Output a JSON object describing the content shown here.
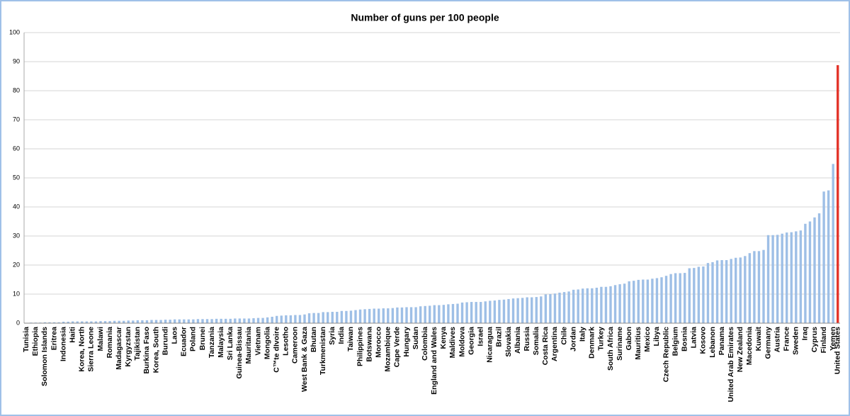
{
  "chart_data": {
    "type": "bar",
    "title": "Number of guns per 100 people",
    "categories": [
      "Tunisia",
      null,
      "Ethiopia",
      null,
      "Solomon Islands",
      null,
      "Eritrea",
      null,
      "Indonesia",
      null,
      "Haiti",
      null,
      "Korea, North",
      null,
      "Sierra Leone",
      null,
      "Malawi",
      null,
      "Romania",
      null,
      "Madagascar",
      null,
      "Kyrgyzstan",
      null,
      "Tajikistan",
      null,
      "Burkina Faso",
      null,
      "Korea, South",
      null,
      "Burundi",
      null,
      "Laos",
      null,
      "Ecuador",
      null,
      "Poland",
      null,
      "Brunei",
      null,
      "Tanzania",
      null,
      "Malaysia",
      null,
      "Sri Lanka",
      null,
      "Guinea-Bissau",
      null,
      "Mauritania",
      null,
      "Vietnam",
      null,
      "Mongolia",
      null,
      "C™te dIvoire",
      null,
      "Lesotho",
      null,
      "Cameroon",
      null,
      "West Bank & Gaza",
      null,
      "Bhutan",
      null,
      "Turkmenistan",
      null,
      "Syria",
      null,
      "India",
      null,
      "Taiwan",
      null,
      "Philippines",
      null,
      "Botswana",
      null,
      "Morocco",
      null,
      "Mozambique",
      null,
      "Cape Verde",
      null,
      "Hungary",
      null,
      "Sudan",
      null,
      "Colombia",
      null,
      "England and Wales",
      null,
      "Kenya",
      null,
      "Maldives",
      null,
      "Moldova",
      null,
      "Georgia",
      null,
      "Israel",
      null,
      "Nicaragua",
      null,
      "Brazil",
      null,
      "Slovakia",
      null,
      "Albania",
      null,
      "Russia",
      null,
      "Somalia",
      null,
      "Costa Rica",
      null,
      "Argentina",
      null,
      "Chile",
      null,
      "Jordan",
      null,
      "Italy",
      null,
      "Denmark",
      null,
      "Turkey",
      null,
      "South Africa",
      null,
      "Suriname",
      null,
      "Gabon",
      null,
      "Mauritius",
      null,
      "Mexico",
      null,
      "Libya",
      null,
      "Czech Republic",
      null,
      "Belgium",
      null,
      "Bosnia",
      null,
      "Latvia",
      null,
      "Kosovo",
      null,
      "Lebanon",
      null,
      "Panama",
      null,
      "United Arab Emirates",
      null,
      "New Zealand",
      null,
      "Macedonia",
      null,
      "Kuwait",
      null,
      "Germany",
      null,
      "Austria",
      null,
      "France",
      null,
      "Sweden",
      null,
      "Iraq",
      null,
      "Cyprus",
      null,
      "Finland",
      null,
      "Yemen",
      "United States"
    ],
    "values": [
      0.1,
      0.2,
      0.2,
      0.2,
      0.3,
      0.3,
      0.3,
      0.3,
      0.5,
      0.5,
      0.6,
      0.6,
      0.6,
      0.6,
      0.6,
      0.6,
      0.7,
      0.7,
      0.7,
      0.8,
      0.8,
      0.8,
      0.9,
      0.9,
      1,
      1,
      1,
      1.1,
      1.1,
      1.1,
      1.2,
      1.2,
      1.3,
      1.3,
      1.3,
      1.3,
      1.3,
      1.4,
      1.4,
      1.4,
      1.4,
      1.5,
      1.5,
      1.5,
      1.5,
      1.6,
      1.6,
      1.6,
      1.6,
      1.7,
      1.8,
      1.8,
      2,
      2.2,
      2.5,
      2.6,
      2.7,
      2.7,
      2.8,
      2.8,
      3,
      3.4,
      3.5,
      3.5,
      3.8,
      3.8,
      3.9,
      3.9,
      4.2,
      4.2,
      4.3,
      4.5,
      4.7,
      4.8,
      4.9,
      5,
      5,
      5.1,
      5.1,
      5.2,
      5.4,
      5.4,
      5.5,
      5.5,
      5.5,
      5.8,
      5.9,
      6,
      6.2,
      6.2,
      6.3,
      6.5,
      6.6,
      6.7,
      7.1,
      7.2,
      7.3,
      7.3,
      7.3,
      7.5,
      7.7,
      7.8,
      8,
      8.1,
      8.3,
      8.5,
      8.6,
      8.7,
      8.9,
      8.9,
      9,
      9.2,
      9.9,
      10,
      10.2,
      10.5,
      10.7,
      10.9,
      11.5,
      11.6,
      11.9,
      12,
      12,
      12.2,
      12.5,
      12.5,
      12.7,
      13.1,
      13.4,
      13.6,
      14.4,
      14.6,
      14.9,
      15,
      15,
      15.3,
      15.5,
      15.8,
      16.3,
      16.9,
      17.2,
      17.2,
      17.3,
      18.9,
      19,
      19.4,
      19.5,
      20.7,
      21,
      21.6,
      21.7,
      21.7,
      22.1,
      22.5,
      22.6,
      23.1,
      24.1,
      24.8,
      24.8,
      25.2,
      30.3,
      30.3,
      30.4,
      30.8,
      31.2,
      31.3,
      31.6,
      31.9,
      34.2,
      35,
      36.4,
      37.8,
      45.3,
      45.7,
      54.8,
      88.8
    ],
    "color": "#9ebfe6",
    "highlight_last_color": "#e3342a",
    "ylim": [
      0,
      100
    ],
    "yticks": [
      0,
      10,
      20,
      30,
      40,
      50,
      60,
      70,
      80,
      90,
      100
    ],
    "grid": true
  }
}
